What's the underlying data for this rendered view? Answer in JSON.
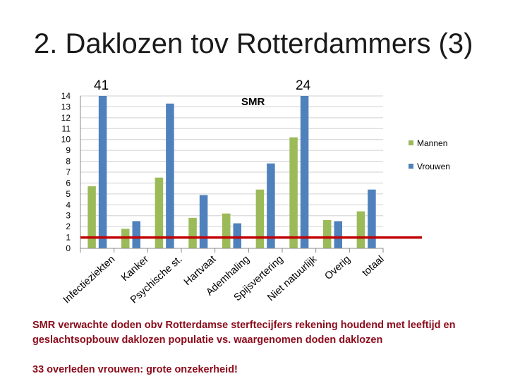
{
  "slide": {
    "title": "2. Daklozen tov Rotterdammers (3)",
    "caption": "SMR verwachte doden obv Rotterdamse sterftecijfers rekening houdend met leeftijd en geslachtsopbouw daklozen populatie vs. waargenomen doden daklozen",
    "note": "33  overleden vrouwen:  grote onzekerheid!"
  },
  "chart_data": {
    "type": "bar",
    "categories": [
      "Infectieziekten",
      "Kanker",
      "Psychische st.",
      "Hartvaat",
      "Ademhaling",
      "Spijsvertering",
      "Niet natuurlijk",
      "Overig",
      "totaal"
    ],
    "series": [
      {
        "name": "Mannen",
        "values": [
          5.7,
          1.8,
          6.5,
          2.8,
          3.2,
          5.4,
          10.2,
          2.6,
          3.4
        ],
        "color": "#9bbb59"
      },
      {
        "name": "Vrouwen",
        "values": [
          14,
          2.5,
          13.3,
          4.9,
          2.3,
          7.8,
          14,
          2.5,
          5.4
        ],
        "color": "#4f81bd"
      }
    ],
    "bar_labels": [
      {
        "category": "Infectieziekten",
        "series": "Vrouwen",
        "text": "41"
      },
      {
        "category": "Niet natuurlijk",
        "series": "Vrouwen",
        "text": "24"
      }
    ],
    "annotation": "SMR",
    "reference_line": {
      "value": 1,
      "color": "#c00000"
    },
    "yticks": [
      0,
      1,
      2,
      3,
      4,
      5,
      6,
      7,
      8,
      9,
      10,
      11,
      12,
      13,
      14
    ],
    "ylim": [
      0,
      14
    ],
    "grid": true,
    "legend_position": "right",
    "title": "",
    "xlabel": "",
    "ylabel": ""
  }
}
